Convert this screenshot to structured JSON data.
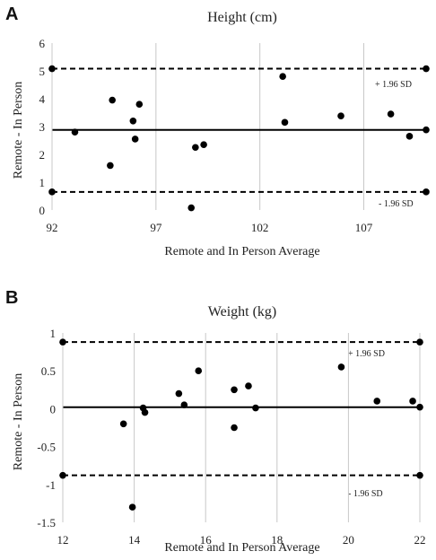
{
  "chart_data": [
    {
      "type": "scatter",
      "panel_label": "A",
      "title": "Height (cm)",
      "xlabel": "Remote and In Person Average",
      "ylabel": "Remote - In Person",
      "xlim": [
        92,
        110
      ],
      "ylim": [
        0,
        6
      ],
      "xticks": [
        92,
        97,
        102,
        107
      ],
      "yticks": [
        0,
        1,
        2,
        3,
        4,
        5,
        6
      ],
      "grid": "vertical",
      "mean": 2.88,
      "upper_loa": 5.08,
      "lower_loa": 0.65,
      "upper_label": "+ 1.96 SD",
      "lower_label": "- 1.96 SD",
      "points": [
        {
          "x": 92.0,
          "y": 5.08
        },
        {
          "x": 92.0,
          "y": 0.65
        },
        {
          "x": 93.1,
          "y": 2.8
        },
        {
          "x": 94.8,
          "y": 1.6
        },
        {
          "x": 94.9,
          "y": 3.95
        },
        {
          "x": 95.9,
          "y": 3.2
        },
        {
          "x": 96.0,
          "y": 2.55
        },
        {
          "x": 96.2,
          "y": 3.8
        },
        {
          "x": 98.7,
          "y": 0.08
        },
        {
          "x": 98.9,
          "y": 2.25
        },
        {
          "x": 99.3,
          "y": 2.35
        },
        {
          "x": 103.1,
          "y": 4.8
        },
        {
          "x": 103.2,
          "y": 3.15
        },
        {
          "x": 105.9,
          "y": 3.38
        },
        {
          "x": 108.3,
          "y": 3.45
        },
        {
          "x": 109.2,
          "y": 2.65
        },
        {
          "x": 110.0,
          "y": 5.08
        },
        {
          "x": 110.0,
          "y": 2.88
        },
        {
          "x": 110.0,
          "y": 0.65
        }
      ]
    },
    {
      "type": "scatter",
      "panel_label": "B",
      "title": "Weight (kg)",
      "xlabel": "Remote and In Person Average",
      "ylabel": "Remote - In Person",
      "xlim": [
        12,
        22
      ],
      "ylim": [
        -1.5,
        1
      ],
      "xticks": [
        12,
        14,
        16,
        18,
        20,
        22
      ],
      "yticks": [
        -1.5,
        -1,
        -0.5,
        0,
        0.5,
        1
      ],
      "grid": "vertical",
      "mean": 0.02,
      "upper_loa": 0.88,
      "lower_loa": -0.88,
      "upper_label": "+ 1.96 SD",
      "lower_label": "- 1.96 SD",
      "points": [
        {
          "x": 12.0,
          "y": 0.88
        },
        {
          "x": 12.0,
          "y": -0.88
        },
        {
          "x": 13.7,
          "y": -0.2
        },
        {
          "x": 13.95,
          "y": -1.3
        },
        {
          "x": 14.25,
          "y": 0.01
        },
        {
          "x": 14.3,
          "y": -0.05
        },
        {
          "x": 15.25,
          "y": 0.2
        },
        {
          "x": 15.4,
          "y": 0.05
        },
        {
          "x": 15.8,
          "y": 0.5
        },
        {
          "x": 16.8,
          "y": 0.25
        },
        {
          "x": 16.8,
          "y": -0.25
        },
        {
          "x": 17.2,
          "y": 0.3
        },
        {
          "x": 17.4,
          "y": 0.01
        },
        {
          "x": 19.8,
          "y": 0.55
        },
        {
          "x": 20.8,
          "y": 0.1
        },
        {
          "x": 21.8,
          "y": 0.1
        },
        {
          "x": 22.0,
          "y": 0.88
        },
        {
          "x": 22.0,
          "y": 0.02
        },
        {
          "x": 22.0,
          "y": -0.88
        }
      ]
    }
  ]
}
